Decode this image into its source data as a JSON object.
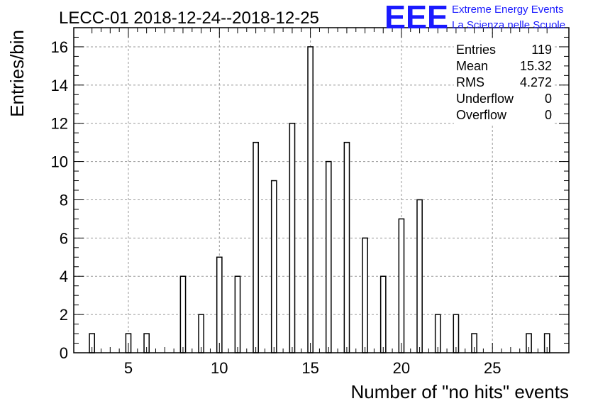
{
  "chart_data": {
    "type": "bar",
    "title": "LECC-01 2018-12-24--2018-12-25",
    "xlabel": "Number of \"no hits\" events",
    "ylabel": "Entries/bin",
    "xlim": [
      2,
      29.2
    ],
    "ylim": [
      0,
      17
    ],
    "x_ticks": [
      5,
      10,
      15,
      20,
      25
    ],
    "y_ticks": [
      0,
      2,
      4,
      6,
      8,
      10,
      12,
      14,
      16
    ],
    "grid": true,
    "x": [
      3,
      5,
      6,
      8,
      9,
      10,
      11,
      12,
      13,
      14,
      15,
      16,
      17,
      18,
      19,
      20,
      21,
      22,
      23,
      24,
      27,
      28
    ],
    "values": [
      1,
      1,
      1,
      4,
      2,
      5,
      4,
      11,
      9,
      12,
      16,
      10,
      11,
      6,
      4,
      7,
      8,
      2,
      2,
      1,
      1,
      1
    ]
  },
  "stats": {
    "rows": [
      {
        "label": "Entries",
        "value": "119"
      },
      {
        "label": "Mean",
        "value": "15.32"
      },
      {
        "label": "RMS",
        "value": "4.272"
      },
      {
        "label": "Underflow",
        "value": "0"
      },
      {
        "label": "Overflow",
        "value": "0"
      }
    ]
  },
  "logo": {
    "mark": "EEE",
    "line1": "Extreme Energy Events",
    "line2": "La Scienza nelle Scuole",
    "color": "#1a1aff"
  }
}
